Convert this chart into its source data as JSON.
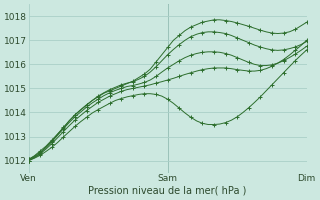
{
  "title": "Pression niveau de la mer( hPa )",
  "bg_color": "#cce8e0",
  "grid_color": "#aacfc8",
  "line_color": "#2d6e2d",
  "ylim": [
    1011.5,
    1018.5
  ],
  "xlim": [
    0,
    48
  ],
  "yticks": [
    1012,
    1013,
    1014,
    1015,
    1016,
    1017,
    1018
  ],
  "xtick_labels": [
    "Ven",
    "Sam",
    "Dim"
  ],
  "xtick_positions": [
    0,
    24,
    48
  ],
  "vlines": [
    0,
    24,
    48
  ],
  "series": [
    [
      1012.0,
      1012.15,
      1012.3,
      1012.55,
      1012.8,
      1013.1,
      1013.35,
      1013.65,
      1013.9,
      1014.1,
      1014.3,
      1014.5,
      1014.65,
      1014.8,
      1014.9,
      1015.0,
      1015.1,
      1015.2,
      1015.3,
      1015.45,
      1015.6,
      1015.8,
      1016.1,
      1016.4,
      1016.7,
      1017.0,
      1017.2,
      1017.4,
      1017.55,
      1017.65,
      1017.75,
      1017.8,
      1017.85,
      1017.85,
      1017.82,
      1017.78,
      1017.72,
      1017.65,
      1017.58,
      1017.5,
      1017.42,
      1017.35,
      1017.3,
      1017.28,
      1017.3,
      1017.35,
      1017.45,
      1017.6,
      1017.75
    ],
    [
      1012.05,
      1012.2,
      1012.4,
      1012.6,
      1012.85,
      1013.1,
      1013.38,
      1013.65,
      1013.9,
      1014.12,
      1014.32,
      1014.5,
      1014.68,
      1014.82,
      1014.95,
      1015.05,
      1015.15,
      1015.22,
      1015.28,
      1015.38,
      1015.5,
      1015.68,
      1015.9,
      1016.15,
      1016.4,
      1016.62,
      1016.82,
      1017.0,
      1017.15,
      1017.25,
      1017.32,
      1017.35,
      1017.35,
      1017.32,
      1017.28,
      1017.2,
      1017.1,
      1017.0,
      1016.9,
      1016.8,
      1016.72,
      1016.65,
      1016.6,
      1016.58,
      1016.6,
      1016.65,
      1016.72,
      1016.82,
      1016.95
    ],
    [
      1012.05,
      1012.18,
      1012.35,
      1012.55,
      1012.78,
      1013.05,
      1013.32,
      1013.58,
      1013.82,
      1014.02,
      1014.22,
      1014.4,
      1014.55,
      1014.7,
      1014.82,
      1014.92,
      1015.0,
      1015.08,
      1015.12,
      1015.18,
      1015.25,
      1015.35,
      1015.5,
      1015.68,
      1015.85,
      1016.0,
      1016.15,
      1016.28,
      1016.38,
      1016.45,
      1016.5,
      1016.52,
      1016.52,
      1016.5,
      1016.45,
      1016.38,
      1016.28,
      1016.18,
      1016.08,
      1016.0,
      1015.95,
      1015.95,
      1015.98,
      1016.05,
      1016.15,
      1016.28,
      1016.42,
      1016.58,
      1016.75
    ],
    [
      1012.0,
      1012.12,
      1012.28,
      1012.48,
      1012.7,
      1012.95,
      1013.2,
      1013.45,
      1013.68,
      1013.88,
      1014.08,
      1014.25,
      1014.42,
      1014.55,
      1014.68,
      1014.78,
      1014.88,
      1014.95,
      1015.0,
      1015.05,
      1015.1,
      1015.15,
      1015.22,
      1015.28,
      1015.35,
      1015.42,
      1015.5,
      1015.58,
      1015.65,
      1015.72,
      1015.78,
      1015.82,
      1015.85,
      1015.85,
      1015.85,
      1015.82,
      1015.78,
      1015.75,
      1015.72,
      1015.72,
      1015.75,
      1015.82,
      1015.92,
      1016.05,
      1016.2,
      1016.38,
      1016.58,
      1016.78,
      1017.0
    ],
    [
      1012.0,
      1012.1,
      1012.22,
      1012.38,
      1012.55,
      1012.75,
      1012.98,
      1013.2,
      1013.42,
      1013.62,
      1013.8,
      1013.98,
      1014.12,
      1014.25,
      1014.38,
      1014.5,
      1014.58,
      1014.65,
      1014.7,
      1014.75,
      1014.78,
      1014.78,
      1014.75,
      1014.68,
      1014.55,
      1014.38,
      1014.18,
      1013.98,
      1013.8,
      1013.65,
      1013.55,
      1013.5,
      1013.5,
      1013.52,
      1013.58,
      1013.68,
      1013.82,
      1014.0,
      1014.2,
      1014.42,
      1014.65,
      1014.9,
      1015.15,
      1015.4,
      1015.65,
      1015.9,
      1016.15,
      1016.38,
      1016.6
    ]
  ]
}
